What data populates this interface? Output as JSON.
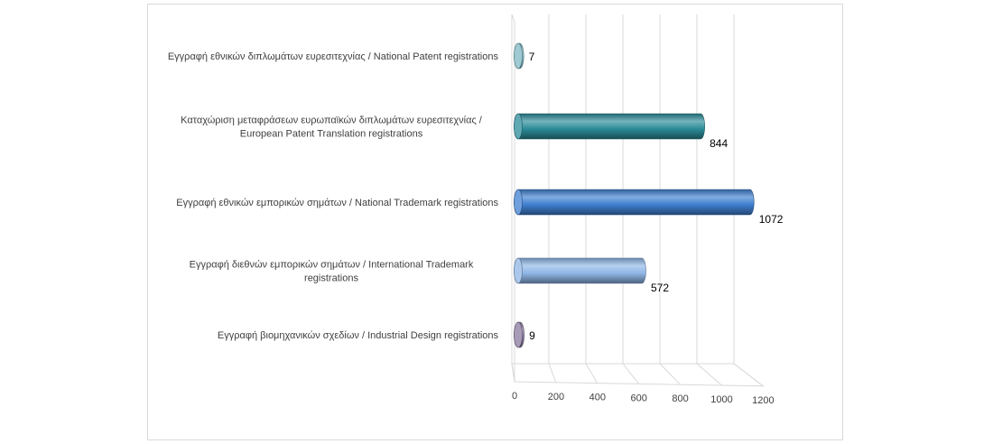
{
  "chart_data": {
    "type": "bar",
    "orientation": "horizontal",
    "style": "3d-cylinder",
    "categories": [
      "Εγγραφή εθνικών διπλωμάτων ευρεσιτεχνίας / National Patent registrations",
      "Καταχώριση μεταφράσεων ευρωπαϊκών διπλωμάτων ευρεσιτεχνίας / European Patent Translation registrations",
      "Εγγραφή εθνικών εμπορικών σημάτων / National Trademark registrations",
      "Εγγραφή διεθνών εμπορικών σημάτων / International Trademark registrations",
      "Εγγραφή βιομηχανικών σχεδίων / Industrial Design registrations"
    ],
    "category_lines": [
      [
        "Εγγραφή εθνικών διπλωμάτων ευρεσιτεχνίας / National Patent registrations"
      ],
      [
        "Καταχώριση μεταφράσεων ευρωπαϊκών διπλωμάτων ευρεσιτεχνίας /",
        "European Patent Translation registrations"
      ],
      [
        "Εγγραφή εθνικών εμπορικών σημάτων / National Trademark registrations"
      ],
      [
        "Εγγραφή διεθνών εμπορικών σημάτων / International Trademark",
        "registrations"
      ],
      [
        "Εγγραφή βιομηχανικών σχεδίων / Industrial Design registrations"
      ]
    ],
    "values": [
      7,
      844,
      1072,
      572,
      9
    ],
    "value_labels": [
      "7",
      "844",
      "1072",
      "572",
      "9"
    ],
    "colors": [
      "#7fb8c4",
      "#2b8c99",
      "#3f7fd0",
      "#8fb6e6",
      "#8b7aa0"
    ],
    "x_ticks": [
      0,
      200,
      400,
      600,
      800,
      1000,
      1200
    ],
    "xlim": [
      0,
      1200
    ],
    "title": "",
    "xlabel": "",
    "ylabel": "",
    "grid": true,
    "legend": "none"
  }
}
